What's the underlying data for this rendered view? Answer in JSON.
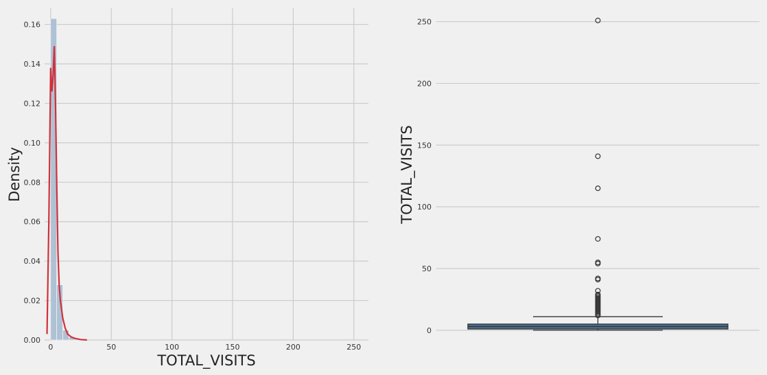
{
  "chart_data": [
    {
      "type": "bar",
      "subtype": "histogram-with-kde",
      "xlabel": "TOTAL_VISITS",
      "ylabel": "Density",
      "xlim": [
        -5,
        262
      ],
      "ylim": [
        0,
        0.171
      ],
      "xticks": [
        0,
        50,
        100,
        150,
        200,
        250
      ],
      "yticks": [
        0.0,
        0.02,
        0.04,
        0.06,
        0.08,
        0.1,
        0.12,
        0.14,
        0.16
      ],
      "ytick_labels": [
        "0.00",
        "0.02",
        "0.04",
        "0.06",
        "0.08",
        "0.10",
        "0.12",
        "0.14",
        "0.16"
      ],
      "grid": true,
      "colors": {
        "bars": "#a9bdd2",
        "kde": "#d0313a"
      },
      "bins": [
        {
          "x0": 0,
          "x1": 5,
          "density": 0.163
        },
        {
          "x0": 5,
          "x1": 10,
          "density": 0.028
        },
        {
          "x0": 10,
          "x1": 15,
          "density": 0.005
        },
        {
          "x0": 15,
          "x1": 20,
          "density": 0.0015
        },
        {
          "x0": 20,
          "x1": 25,
          "density": 0.0007
        },
        {
          "x0": 25,
          "x1": 30,
          "density": 0.0003
        }
      ],
      "kde": {
        "x": [
          -3,
          -1.5,
          0,
          1,
          2,
          3,
          4,
          5,
          6,
          7,
          8,
          10,
          12,
          14,
          17,
          20,
          25,
          30
        ],
        "y": [
          0.003,
          0.06,
          0.138,
          0.126,
          0.134,
          0.149,
          0.12,
          0.08,
          0.045,
          0.028,
          0.02,
          0.011,
          0.006,
          0.003,
          0.0015,
          0.0008,
          0.0002,
          0.0
        ]
      }
    },
    {
      "type": "box",
      "xlabel": "",
      "ylabel": "TOTAL_VISITS",
      "ylim": [
        -14,
        262
      ],
      "yticks": [
        0,
        50,
        100,
        150,
        200,
        250
      ],
      "grid": true,
      "colors": {
        "box": "#4c72b0",
        "box_fill": "#4a6f93",
        "line": "#333333"
      },
      "box": {
        "q1": 1,
        "median": 3,
        "q3": 5,
        "whisker_low": 0,
        "whisker_high": 11
      },
      "outliers": [
        12,
        13,
        14,
        15,
        16,
        17,
        18,
        19,
        20,
        21,
        22,
        23,
        24,
        25,
        26,
        27,
        28,
        29,
        32,
        41,
        42,
        54,
        55,
        74,
        115,
        141,
        251
      ]
    }
  ]
}
